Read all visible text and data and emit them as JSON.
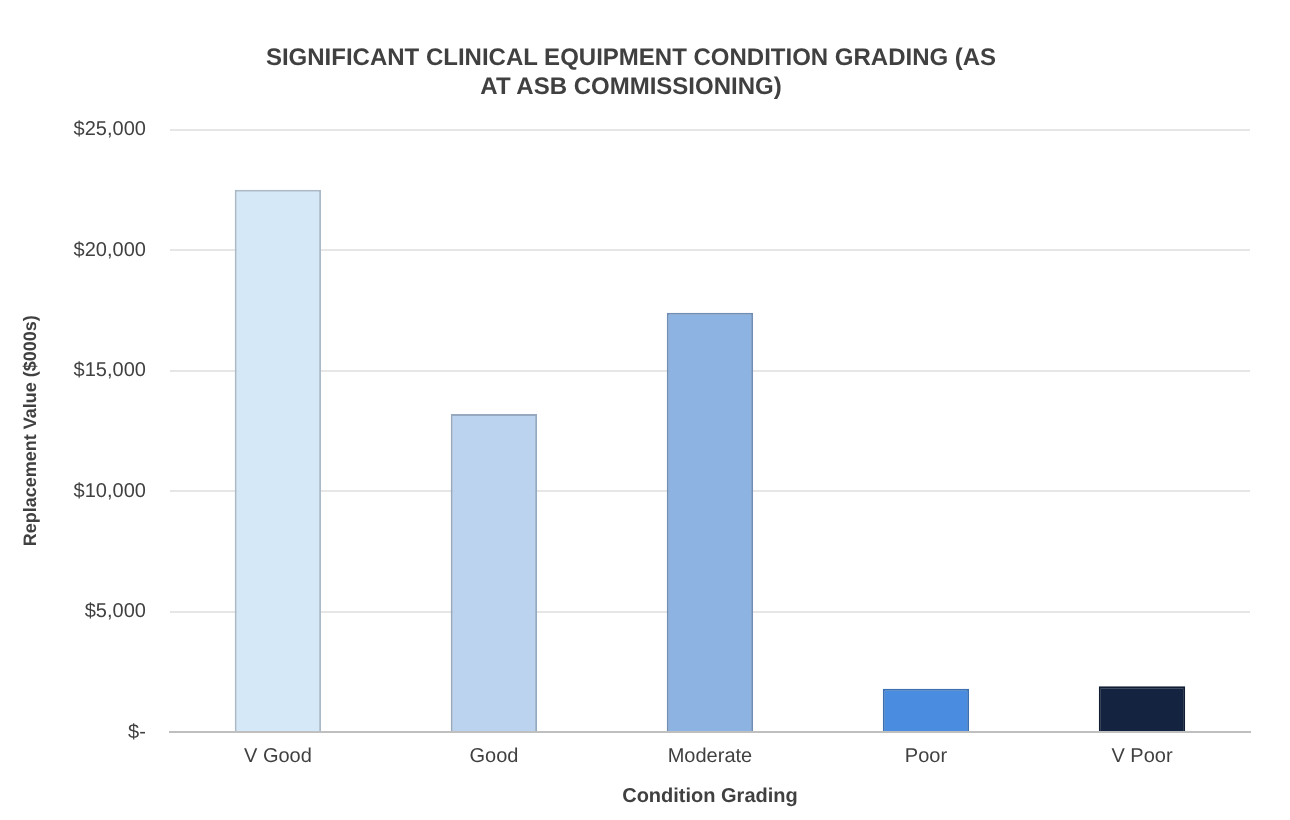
{
  "chart_data": {
    "type": "bar",
    "title": "SIGNIFICANT CLINICAL EQUIPMENT CONDITION GRADING (AS AT ASB COMMISSIONING)",
    "xlabel": "Condition Grading",
    "ylabel": "Replacement Value ($000s)",
    "categories": [
      "V Good",
      "Good",
      "Moderate",
      "Poor",
      "V Poor"
    ],
    "values": [
      22500,
      13200,
      17400,
      1800,
      1900
    ],
    "colors": [
      "#d5e8f7",
      "#bcd3ef",
      "#8db3e2",
      "#4a8de0",
      "#14233f"
    ],
    "ylim": [
      0,
      25000
    ],
    "yticks": [
      {
        "value": 0,
        "label": "$-"
      },
      {
        "value": 5000,
        "label": "$5,000"
      },
      {
        "value": 10000,
        "label": "$10,000"
      },
      {
        "value": 15000,
        "label": "$15,000"
      },
      {
        "value": 20000,
        "label": "$20,000"
      },
      {
        "value": 25000,
        "label": "$25,000"
      }
    ],
    "grid": "y",
    "legend": false
  }
}
